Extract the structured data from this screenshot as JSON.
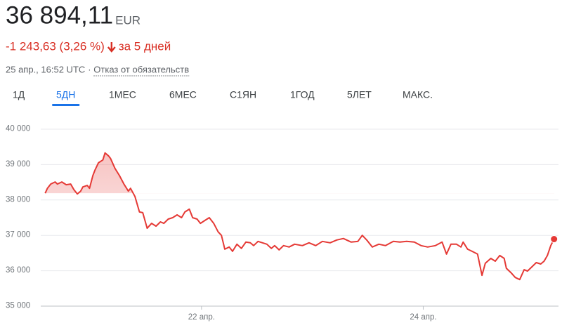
{
  "header": {
    "price": "36 894,11",
    "currency": "EUR",
    "change": "-1 243,63 (3,26 %)",
    "period": "за 5 дней",
    "timestamp": "25 апр., 16:52 UTC",
    "separator": "·",
    "disclaimer": "Отказ от обязательств"
  },
  "tabs": [
    "1Д",
    "5ДН",
    "1МЕС",
    "6МЕС",
    "С1ЯН",
    "1ГОД",
    "5ЛЕТ",
    "МАКС."
  ],
  "active_tab": 1,
  "chart_data": {
    "type": "line",
    "color": "#e53935",
    "x": [
      20.59,
      20.61,
      20.64,
      20.68,
      20.7,
      20.74,
      20.78,
      20.82,
      20.85,
      20.88,
      20.91,
      20.93,
      20.97,
      20.99,
      21.02,
      21.04,
      21.07,
      21.11,
      21.13,
      21.16,
      21.18,
      21.22,
      21.26,
      21.3,
      21.34,
      21.36,
      21.4,
      21.44,
      21.47,
      21.51,
      21.55,
      21.59,
      21.63,
      21.66,
      21.7,
      21.74,
      21.78,
      21.82,
      21.85,
      21.89,
      21.92,
      21.96,
      21.99,
      22.03,
      22.07,
      22.11,
      22.15,
      22.18,
      22.21,
      22.25,
      22.28,
      22.32,
      22.36,
      22.4,
      22.44,
      22.47,
      22.51,
      22.55,
      22.59,
      22.63,
      22.66,
      22.7,
      22.74,
      22.79,
      22.84,
      22.91,
      22.97,
      23.03,
      23.09,
      23.16,
      23.22,
      23.28,
      23.35,
      23.41,
      23.45,
      23.49,
      23.54,
      23.6,
      23.66,
      23.73,
      23.79,
      23.85,
      23.92,
      23.98,
      24.04,
      24.11,
      24.17,
      24.21,
      24.25,
      24.3,
      24.34,
      24.36,
      24.4,
      24.44,
      24.49,
      24.53,
      24.56,
      24.61,
      24.65,
      24.69,
      24.73,
      24.75,
      24.79,
      24.83,
      24.87,
      24.91,
      24.94,
      24.98,
      25.02,
      25.06,
      25.09,
      25.12,
      25.15,
      25.18
    ],
    "values": [
      38190,
      38330,
      38450,
      38510,
      38450,
      38510,
      38430,
      38450,
      38290,
      38170,
      38250,
      38370,
      38410,
      38330,
      38690,
      38850,
      39050,
      39130,
      39330,
      39250,
      39170,
      38890,
      38690,
      38450,
      38250,
      38330,
      38100,
      37660,
      37640,
      37200,
      37340,
      37260,
      37380,
      37340,
      37460,
      37500,
      37580,
      37500,
      37660,
      37740,
      37500,
      37460,
      37340,
      37420,
      37500,
      37340,
      37100,
      37000,
      36610,
      36670,
      36550,
      36750,
      36630,
      36810,
      36790,
      36710,
      36830,
      36790,
      36750,
      36630,
      36710,
      36590,
      36710,
      36670,
      36750,
      36710,
      36790,
      36710,
      36830,
      36790,
      36870,
      36910,
      36810,
      36830,
      37000,
      36870,
      36670,
      36750,
      36710,
      36830,
      36810,
      36830,
      36810,
      36710,
      36670,
      36710,
      36810,
      36470,
      36750,
      36750,
      36670,
      36810,
      36610,
      36550,
      36470,
      35870,
      36210,
      36350,
      36270,
      36430,
      36350,
      36070,
      35950,
      35810,
      35750,
      36030,
      35990,
      36110,
      36230,
      36190,
      36270,
      36430,
      36710,
      36894.11
    ],
    "xlim": [
      20.55,
      25.22
    ],
    "xticks": [
      {
        "value": 22,
        "label": "22 апр."
      },
      {
        "value": 24,
        "label": "24 апр."
      }
    ],
    "ylim": [
      35000,
      40000
    ],
    "yticks": [
      {
        "value": 35000,
        "label": "35 000"
      },
      {
        "value": 36000,
        "label": "36 000"
      },
      {
        "value": 37000,
        "label": "37 000"
      },
      {
        "value": 38000,
        "label": "38 000"
      },
      {
        "value": 39000,
        "label": "39 000"
      },
      {
        "value": 40000,
        "label": "40 000"
      }
    ],
    "grid": true
  }
}
